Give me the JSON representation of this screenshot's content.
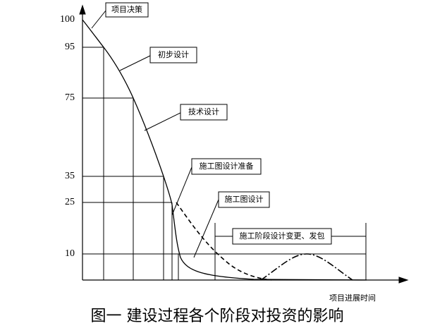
{
  "y_axis": {
    "ticks": [
      100,
      95,
      75,
      35,
      25,
      10
    ]
  },
  "stages": [
    {
      "label": "项目决策"
    },
    {
      "label": "初步设计"
    },
    {
      "label": "技术设计"
    },
    {
      "label": "施工图设计准备"
    },
    {
      "label": "施工图设计"
    },
    {
      "label": "施工阶段设计变更、发包"
    }
  ],
  "x_axis": {
    "label": "项目进展时间"
  },
  "caption": "图一 建设过程各个阶段对投资的影响"
}
